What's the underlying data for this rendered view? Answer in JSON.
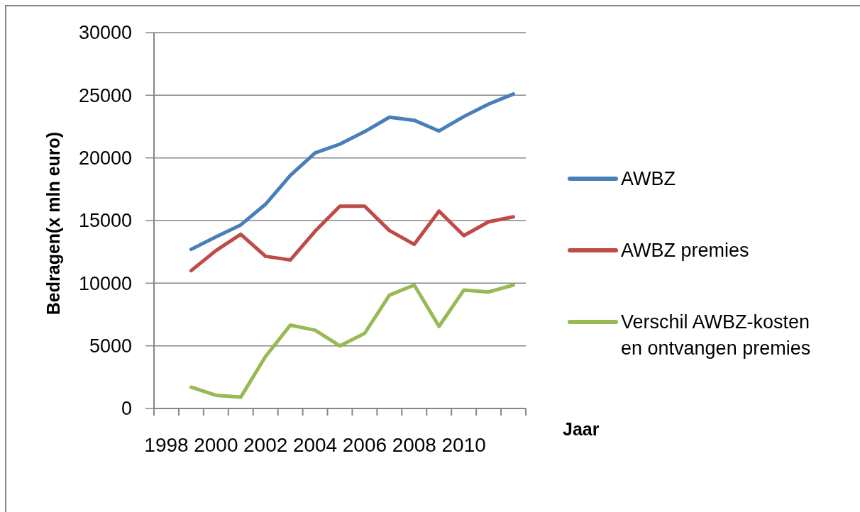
{
  "chart_data": {
    "type": "line",
    "categories": [
      "1998",
      null,
      "2000",
      null,
      "2002",
      null,
      "2004",
      null,
      "2006",
      null,
      "2008",
      null,
      "2010",
      null,
      null
    ],
    "series": [
      {
        "name": "AWBZ",
        "color": "#4a7ebb",
        "values": [
          null,
          12700,
          13700,
          14650,
          16300,
          18600,
          20400,
          21100,
          22100,
          23250,
          23000,
          22150,
          23300,
          24300,
          25100
        ]
      },
      {
        "name": "AWBZ premies",
        "color": "#be4b48",
        "values": [
          null,
          11000,
          12600,
          13900,
          12150,
          11850,
          14150,
          16150,
          16150,
          14200,
          13100,
          15750,
          13800,
          14900,
          15300
        ]
      },
      {
        "name": "Verschil AWBZ-kosten en ontvangen premies",
        "color": "#98b954",
        "values": [
          null,
          1700,
          1050,
          900,
          4150,
          6650,
          6250,
          5000,
          6000,
          9050,
          9850,
          6550,
          9450,
          9300,
          9850
        ]
      }
    ],
    "ylim": [
      0,
      30000
    ],
    "yticks": [
      0,
      5000,
      10000,
      15000,
      20000,
      25000,
      30000
    ],
    "ylabel": "Bedragen(x mln euro)",
    "xlabel": "Jaar",
    "grid": "y",
    "legend": "right"
  }
}
